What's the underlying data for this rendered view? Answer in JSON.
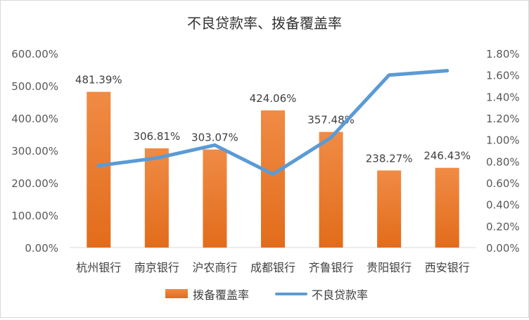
{
  "chart_data": {
    "type": "bar",
    "title": "不良贷款率、拨备覆盖率",
    "categories": [
      "杭州银行",
      "南京银行",
      "沪农商行",
      "成都银行",
      "齐鲁银行",
      "贵阳银行",
      "西安银行"
    ],
    "series": [
      {
        "name": "拨备覆盖率",
        "type": "bar",
        "axis": "left",
        "values": [
          481.39,
          306.81,
          303.07,
          424.06,
          357.48,
          238.27,
          246.43
        ],
        "labels": [
          "481.39%",
          "306.81%",
          "303.07%",
          "424.06%",
          "357.48%",
          "238.27%",
          "246.43%"
        ],
        "color": "#ed7d31"
      },
      {
        "name": "不良贷款率",
        "type": "line",
        "axis": "right",
        "values": [
          0.76,
          0.83,
          0.95,
          0.68,
          1.02,
          1.6,
          1.64
        ],
        "color": "#5b9bd5"
      }
    ],
    "y_left": {
      "min": 0,
      "max": 600,
      "step": 100,
      "ticks": [
        "0.00%",
        "100.00%",
        "200.00%",
        "300.00%",
        "400.00%",
        "500.00%",
        "600.00%"
      ]
    },
    "y_right": {
      "min": 0,
      "max": 1.8,
      "step": 0.2,
      "ticks": [
        "0.00%",
        "0.20%",
        "0.40%",
        "0.60%",
        "0.80%",
        "1.00%",
        "1.20%",
        "1.40%",
        "1.60%",
        "1.80%"
      ]
    },
    "grid": false,
    "legend_position": "bottom"
  },
  "legend": {
    "bar_label": "拨备覆盖率",
    "line_label": "不良贷款率"
  }
}
